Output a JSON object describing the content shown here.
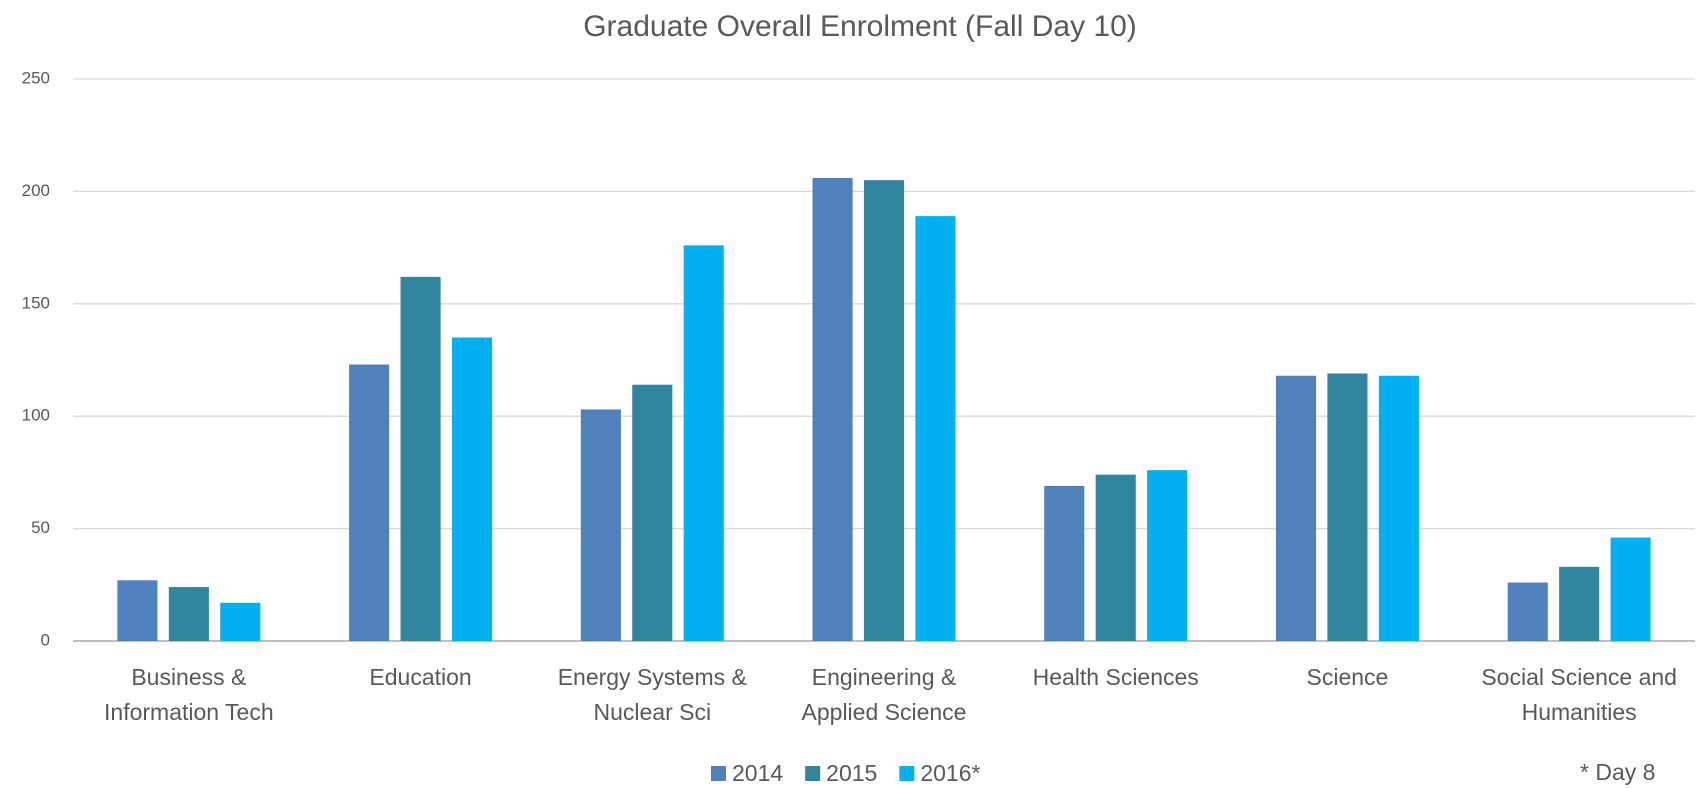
{
  "chart_data": {
    "type": "bar",
    "title": "Graduate Overall Enrolment (Fall Day 10)",
    "categories": [
      [
        "Business &",
        "Information Tech"
      ],
      [
        "Education"
      ],
      [
        "Energy Systems &",
        "Nuclear Sci"
      ],
      [
        "Engineering &",
        "Applied Science"
      ],
      [
        "Health Sciences"
      ],
      [
        "Science"
      ],
      [
        "Social Science and",
        "Humanities"
      ]
    ],
    "series": [
      {
        "name": "2014",
        "color": "#4f81bd",
        "values": [
          27,
          123,
          103,
          206,
          69,
          118,
          26
        ]
      },
      {
        "name": "2015",
        "color": "#31859c",
        "values": [
          24,
          162,
          114,
          205,
          74,
          119,
          33
        ]
      },
      {
        "name": "2016*",
        "color": "#00b0f0",
        "values": [
          17,
          135,
          176,
          189,
          76,
          118,
          46
        ]
      }
    ],
    "ylim": [
      0,
      250
    ],
    "yticks": [
      0,
      50,
      100,
      150,
      200,
      250
    ],
    "grid": true,
    "legend": "bottom",
    "annotation": "* Day 8"
  }
}
